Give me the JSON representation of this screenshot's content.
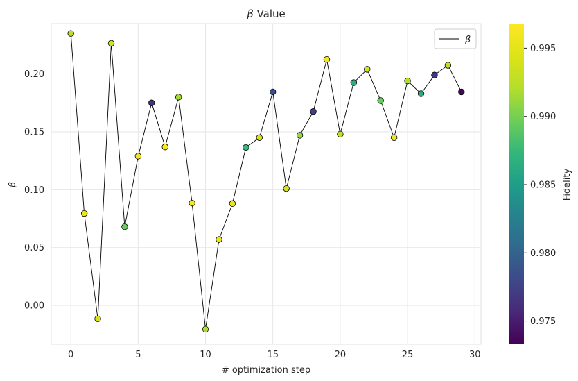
{
  "chart_data": {
    "type": "scatter",
    "title_symbol": "β",
    "title_rest": " Value",
    "xlabel": "# optimization step",
    "ylabel": "β",
    "colorbar_label": "Fidelity",
    "xlim": [
      -1.45,
      30.45
    ],
    "ylim": [
      -0.0335,
      0.2435
    ],
    "x_ticks": [
      0,
      5,
      10,
      15,
      20,
      25,
      30
    ],
    "x_tick_labels": [
      "0",
      "5",
      "10",
      "15",
      "20",
      "25",
      "30"
    ],
    "y_ticks": [
      0.0,
      0.05,
      0.1,
      0.15,
      0.2
    ],
    "y_tick_labels": [
      "0.00",
      "0.05",
      "0.10",
      "0.15",
      "0.20"
    ],
    "colorbar_range": [
      0.9733,
      0.9968
    ],
    "colorbar_ticks": [
      0.975,
      0.98,
      0.985,
      0.99,
      0.995
    ],
    "colorbar_tick_labels": [
      "0.975",
      "0.980",
      "0.985",
      "0.990",
      "0.995"
    ],
    "colormap": "viridis",
    "grid": true,
    "legend": {
      "placement": "top-right",
      "entries": [
        "β"
      ]
    },
    "series": [
      {
        "name": "β",
        "line_color": "#000000",
        "x": [
          0,
          1,
          2,
          3,
          4,
          5,
          6,
          7,
          8,
          9,
          10,
          11,
          12,
          13,
          14,
          15,
          16,
          17,
          18,
          19,
          20,
          21,
          22,
          23,
          24,
          25,
          26,
          27,
          28,
          29
        ],
        "y": [
          0.235,
          0.0795,
          -0.0115,
          0.2265,
          0.068,
          0.129,
          0.175,
          0.137,
          0.18,
          0.0885,
          -0.0205,
          0.057,
          0.088,
          0.1365,
          0.145,
          0.1845,
          0.101,
          0.147,
          0.1675,
          0.2125,
          0.148,
          0.1925,
          0.204,
          0.177,
          0.145,
          0.194,
          0.183,
          0.199,
          0.2075,
          0.1845
        ],
        "fidelity": [
          0.9925,
          0.9955,
          0.994,
          0.9935,
          0.9895,
          0.996,
          0.9765,
          0.9962,
          0.9915,
          0.9962,
          0.9918,
          0.9958,
          0.9955,
          0.9875,
          0.994,
          0.9785,
          0.994,
          0.991,
          0.9775,
          0.9962,
          0.993,
          0.9865,
          0.994,
          0.9895,
          0.9955,
          0.992,
          0.9862,
          0.9768,
          0.9925,
          0.9735
        ]
      }
    ]
  }
}
